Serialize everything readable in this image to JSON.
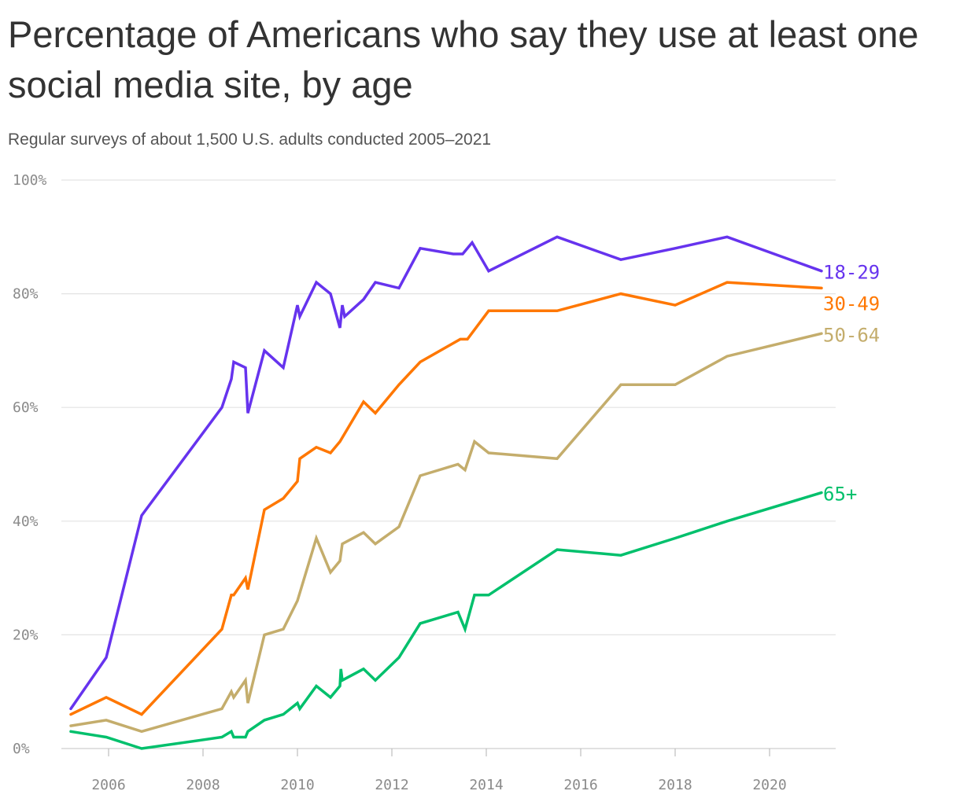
{
  "chart_data": {
    "type": "line",
    "title": "Percentage of Americans who say they use at least one social media site, by age",
    "subtitle": "Regular surveys of about 1,500 U.S. adults conducted 2005–2021",
    "xlabel": "",
    "ylabel": "",
    "xlim": [
      2005.0,
      2021.4
    ],
    "ylim": [
      0,
      100
    ],
    "x_ticks": [
      2006,
      2008,
      2010,
      2012,
      2014,
      2016,
      2018,
      2020
    ],
    "x_tick_labels": [
      "2006",
      "2008",
      "2010",
      "2012",
      "2014",
      "2016",
      "2018",
      "2020"
    ],
    "y_ticks": [
      0,
      20,
      40,
      60,
      80,
      100
    ],
    "y_tick_labels": [
      "0%",
      "20%",
      "40%",
      "60%",
      "80%",
      "100%"
    ],
    "grid": "horizontal",
    "legend": "direct labels at line ends (right)",
    "series": [
      {
        "name": "18-29",
        "color": "#6633ee",
        "points": [
          [
            2005.2,
            7
          ],
          [
            2005.95,
            16
          ],
          [
            2006.7,
            41
          ],
          [
            2008.4,
            60
          ],
          [
            2008.6,
            65
          ],
          [
            2008.65,
            68
          ],
          [
            2008.9,
            67
          ],
          [
            2008.95,
            59
          ],
          [
            2009.3,
            70
          ],
          [
            2009.7,
            67
          ],
          [
            2010.0,
            78
          ],
          [
            2010.05,
            76
          ],
          [
            2010.4,
            82
          ],
          [
            2010.7,
            80
          ],
          [
            2010.9,
            74
          ],
          [
            2010.95,
            78
          ],
          [
            2011.0,
            76
          ],
          [
            2011.4,
            79
          ],
          [
            2011.65,
            82
          ],
          [
            2012.15,
            81
          ],
          [
            2012.6,
            88
          ],
          [
            2013.3,
            87
          ],
          [
            2013.5,
            87
          ],
          [
            2013.7,
            89
          ],
          [
            2014.05,
            84
          ],
          [
            2015.5,
            90
          ],
          [
            2016.85,
            86
          ],
          [
            2018.0,
            88
          ],
          [
            2019.1,
            90
          ],
          [
            2021.1,
            84
          ]
        ]
      },
      {
        "name": "30-49",
        "color": "#ff7700",
        "points": [
          [
            2005.2,
            6
          ],
          [
            2005.95,
            9
          ],
          [
            2006.7,
            6
          ],
          [
            2008.4,
            21
          ],
          [
            2008.6,
            27
          ],
          [
            2008.65,
            27
          ],
          [
            2008.9,
            30
          ],
          [
            2008.95,
            28
          ],
          [
            2009.3,
            42
          ],
          [
            2009.7,
            44
          ],
          [
            2010.0,
            47
          ],
          [
            2010.05,
            51
          ],
          [
            2010.4,
            53
          ],
          [
            2010.7,
            52
          ],
          [
            2010.9,
            54
          ],
          [
            2011.4,
            61
          ],
          [
            2011.65,
            59
          ],
          [
            2012.15,
            64
          ],
          [
            2012.6,
            68
          ],
          [
            2013.45,
            72
          ],
          [
            2013.6,
            72
          ],
          [
            2014.05,
            77
          ],
          [
            2015.5,
            77
          ],
          [
            2016.85,
            80
          ],
          [
            2018.0,
            78
          ],
          [
            2019.1,
            82
          ],
          [
            2021.1,
            81
          ]
        ]
      },
      {
        "name": "50-64",
        "color": "#c4ad6c",
        "points": [
          [
            2005.2,
            4
          ],
          [
            2005.95,
            5
          ],
          [
            2006.7,
            3
          ],
          [
            2008.4,
            7
          ],
          [
            2008.6,
            10
          ],
          [
            2008.65,
            9
          ],
          [
            2008.9,
            12
          ],
          [
            2008.95,
            8
          ],
          [
            2009.3,
            20
          ],
          [
            2009.7,
            21
          ],
          [
            2010.0,
            26
          ],
          [
            2010.4,
            37
          ],
          [
            2010.7,
            31
          ],
          [
            2010.9,
            33
          ],
          [
            2010.95,
            36
          ],
          [
            2011.4,
            38
          ],
          [
            2011.65,
            36
          ],
          [
            2012.15,
            39
          ],
          [
            2012.6,
            48
          ],
          [
            2013.4,
            50
          ],
          [
            2013.55,
            49
          ],
          [
            2013.75,
            54
          ],
          [
            2014.05,
            52
          ],
          [
            2015.5,
            51
          ],
          [
            2016.85,
            64
          ],
          [
            2018.0,
            64
          ],
          [
            2019.1,
            69
          ],
          [
            2021.1,
            73
          ]
        ]
      },
      {
        "name": "65+",
        "color": "#00c06c",
        "points": [
          [
            2005.2,
            3
          ],
          [
            2005.95,
            2
          ],
          [
            2006.7,
            0
          ],
          [
            2008.4,
            2
          ],
          [
            2008.6,
            3
          ],
          [
            2008.65,
            2
          ],
          [
            2008.9,
            2
          ],
          [
            2008.95,
            3
          ],
          [
            2009.3,
            5
          ],
          [
            2009.7,
            6
          ],
          [
            2010.0,
            8
          ],
          [
            2010.05,
            7
          ],
          [
            2010.4,
            11
          ],
          [
            2010.7,
            9
          ],
          [
            2010.9,
            11
          ],
          [
            2010.92,
            14
          ],
          [
            2010.95,
            12
          ],
          [
            2011.4,
            14
          ],
          [
            2011.65,
            12
          ],
          [
            2012.15,
            16
          ],
          [
            2012.6,
            22
          ],
          [
            2013.4,
            24
          ],
          [
            2013.55,
            21
          ],
          [
            2013.75,
            27
          ],
          [
            2014.05,
            27
          ],
          [
            2015.5,
            35
          ],
          [
            2016.85,
            34
          ],
          [
            2018.0,
            37
          ],
          [
            2019.1,
            40
          ],
          [
            2021.1,
            45
          ]
        ]
      }
    ]
  }
}
